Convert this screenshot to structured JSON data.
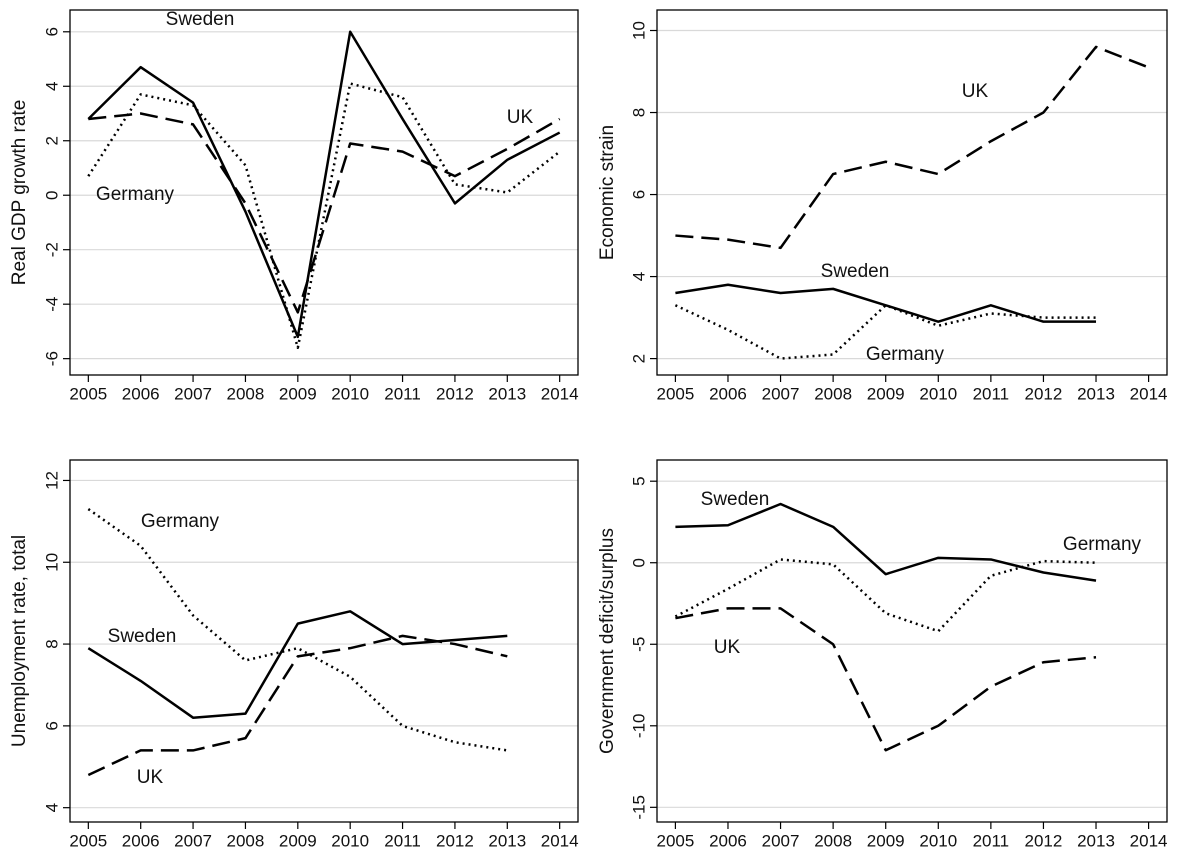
{
  "chart_data": [
    {
      "type": "line",
      "ylabel": "Real GDP growth rate",
      "x": [
        2005,
        2006,
        2007,
        2008,
        2009,
        2010,
        2011,
        2012,
        2013,
        2014
      ],
      "xlim": [
        2004.65,
        2014.35
      ],
      "xticks": [
        2005,
        2006,
        2007,
        2008,
        2009,
        2010,
        2011,
        2012,
        2013,
        2014
      ],
      "ylim": [
        -6.6,
        6.8
      ],
      "yticks": [
        -6,
        -4,
        -2,
        0,
        2,
        4,
        6
      ],
      "grid": true,
      "series": [
        {
          "name": "Sweden",
          "color": "#000000",
          "dash": "solid",
          "values": [
            2.8,
            4.7,
            3.4,
            -0.6,
            -5.2,
            6.0,
            2.8,
            -0.3,
            1.3,
            2.3
          ]
        },
        {
          "name": "Germany",
          "color": "#000000",
          "dash": "dotted",
          "values": [
            0.7,
            3.7,
            3.3,
            1.1,
            -5.6,
            4.1,
            3.6,
            0.4,
            0.1,
            1.6
          ]
        },
        {
          "name": "UK",
          "color": "#000000",
          "dash": "dashed",
          "values": [
            2.8,
            3.0,
            2.6,
            -0.3,
            -4.3,
            1.9,
            1.6,
            0.7,
            1.7,
            2.8
          ]
        }
      ]
    },
    {
      "type": "line",
      "ylabel": "Economic strain",
      "x": [
        2005,
        2006,
        2007,
        2008,
        2009,
        2010,
        2011,
        2012,
        2013,
        2014
      ],
      "xlim": [
        2004.65,
        2014.35
      ],
      "xticks": [
        2005,
        2006,
        2007,
        2008,
        2009,
        2010,
        2011,
        2012,
        2013,
        2014
      ],
      "ylim": [
        1.6,
        10.5
      ],
      "yticks": [
        2,
        4,
        6,
        8,
        10
      ],
      "grid": true,
      "series": [
        {
          "name": "UK",
          "color": "#000000",
          "dash": "dashed",
          "values": [
            5.0,
            4.9,
            4.7,
            6.5,
            6.8,
            6.5,
            7.3,
            8.0,
            9.6,
            9.1
          ]
        },
        {
          "name": "Sweden",
          "color": "#000000",
          "dash": "solid",
          "values": [
            3.6,
            3.8,
            3.6,
            3.7,
            3.3,
            2.9,
            3.3,
            2.9,
            2.9,
            null
          ]
        },
        {
          "name": "Germany",
          "color": "#000000",
          "dash": "dotted",
          "values": [
            3.3,
            2.7,
            2.0,
            2.1,
            3.3,
            2.8,
            3.1,
            3.0,
            3.0,
            null
          ]
        }
      ]
    },
    {
      "type": "line",
      "ylabel": "Unemployment rate, total",
      "x": [
        2005,
        2006,
        2007,
        2008,
        2009,
        2010,
        2011,
        2012,
        2013,
        2014
      ],
      "xlim": [
        2004.65,
        2014.35
      ],
      "xticks": [
        2005,
        2006,
        2007,
        2008,
        2009,
        2010,
        2011,
        2012,
        2013,
        2014
      ],
      "ylim": [
        3.65,
        12.5
      ],
      "yticks": [
        4,
        6,
        8,
        10,
        12
      ],
      "grid": true,
      "series": [
        {
          "name": "Germany",
          "color": "#000000",
          "dash": "dotted",
          "values": [
            11.3,
            10.4,
            8.7,
            7.6,
            7.9,
            7.2,
            6.0,
            5.6,
            5.4,
            null
          ]
        },
        {
          "name": "Sweden",
          "color": "#000000",
          "dash": "solid",
          "values": [
            7.9,
            7.1,
            6.2,
            6.3,
            8.5,
            8.8,
            8.0,
            8.1,
            8.2,
            null
          ]
        },
        {
          "name": "UK",
          "color": "#000000",
          "dash": "dashed",
          "values": [
            4.8,
            5.4,
            5.4,
            5.7,
            7.7,
            7.9,
            8.2,
            8.0,
            7.7,
            null
          ]
        }
      ]
    },
    {
      "type": "line",
      "ylabel": "Government deficit/surplus",
      "x": [
        2005,
        2006,
        2007,
        2008,
        2009,
        2010,
        2011,
        2012,
        2013,
        2014
      ],
      "xlim": [
        2004.65,
        2014.35
      ],
      "xticks": [
        2005,
        2006,
        2007,
        2008,
        2009,
        2010,
        2011,
        2012,
        2013,
        2014
      ],
      "ylim": [
        -15.9,
        6.3
      ],
      "yticks": [
        -15,
        -10,
        -5,
        0,
        5
      ],
      "grid": true,
      "series": [
        {
          "name": "Sweden",
          "color": "#000000",
          "dash": "solid",
          "values": [
            2.2,
            2.3,
            3.6,
            2.2,
            -0.7,
            0.3,
            0.2,
            -0.6,
            -1.1,
            null
          ]
        },
        {
          "name": "Germany",
          "color": "#000000",
          "dash": "dotted",
          "values": [
            -3.3,
            -1.6,
            0.2,
            -0.1,
            -3.1,
            -4.2,
            -0.8,
            0.1,
            0.0,
            null
          ]
        },
        {
          "name": "UK",
          "color": "#000000",
          "dash": "dashed",
          "values": [
            -3.4,
            -2.8,
            -2.8,
            -5.0,
            -11.5,
            -10.0,
            -7.6,
            -6.1,
            -5.8,
            null
          ]
        }
      ]
    }
  ]
}
